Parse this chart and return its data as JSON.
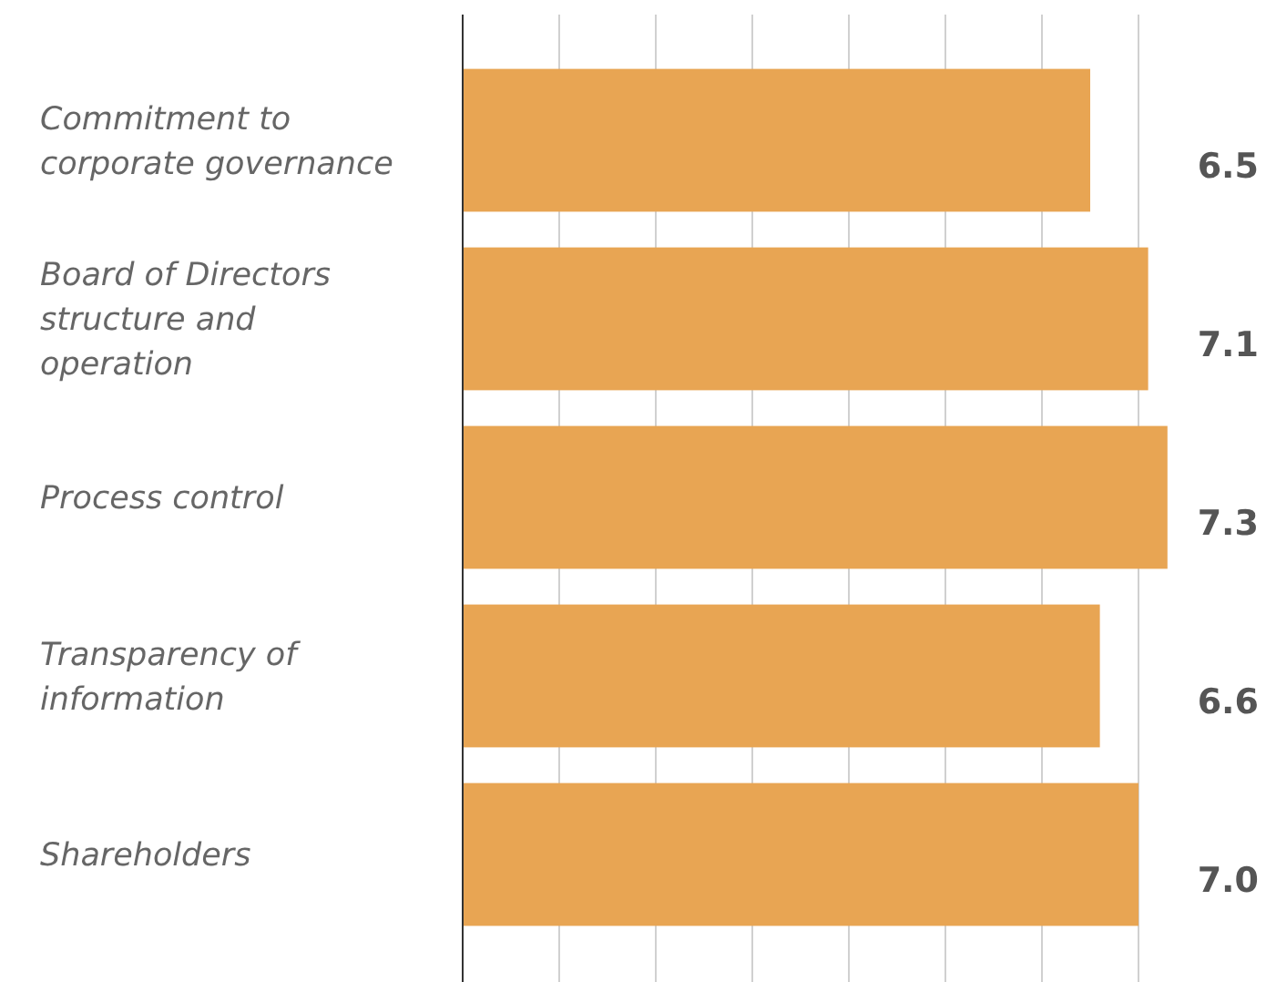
{
  "chart_data": {
    "type": "bar",
    "orientation": "horizontal",
    "categories": [
      "Commitment to corporate governance",
      "Board of Directors structure and operation",
      "Process control",
      "Transparency of information",
      "Shareholders"
    ],
    "values": [
      6.5,
      7.1,
      7.3,
      6.6,
      7.0
    ],
    "value_labels": [
      "6.5",
      "7.1",
      "7.3",
      "6.6",
      "7.0"
    ],
    "color": "#e8a553",
    "xticks": [
      {
        "value": 0,
        "label": null
      },
      {
        "value": 1,
        "label": null
      },
      {
        "value": 2,
        "label": null
      },
      {
        "value": 3,
        "label": null
      },
      {
        "value": 4,
        "label": null
      },
      {
        "value": 5,
        "label": null
      },
      {
        "value": 6,
        "label": null
      },
      {
        "value": 7,
        "label": null
      }
    ],
    "tick_labels": "y",
    "grid": "x"
  }
}
